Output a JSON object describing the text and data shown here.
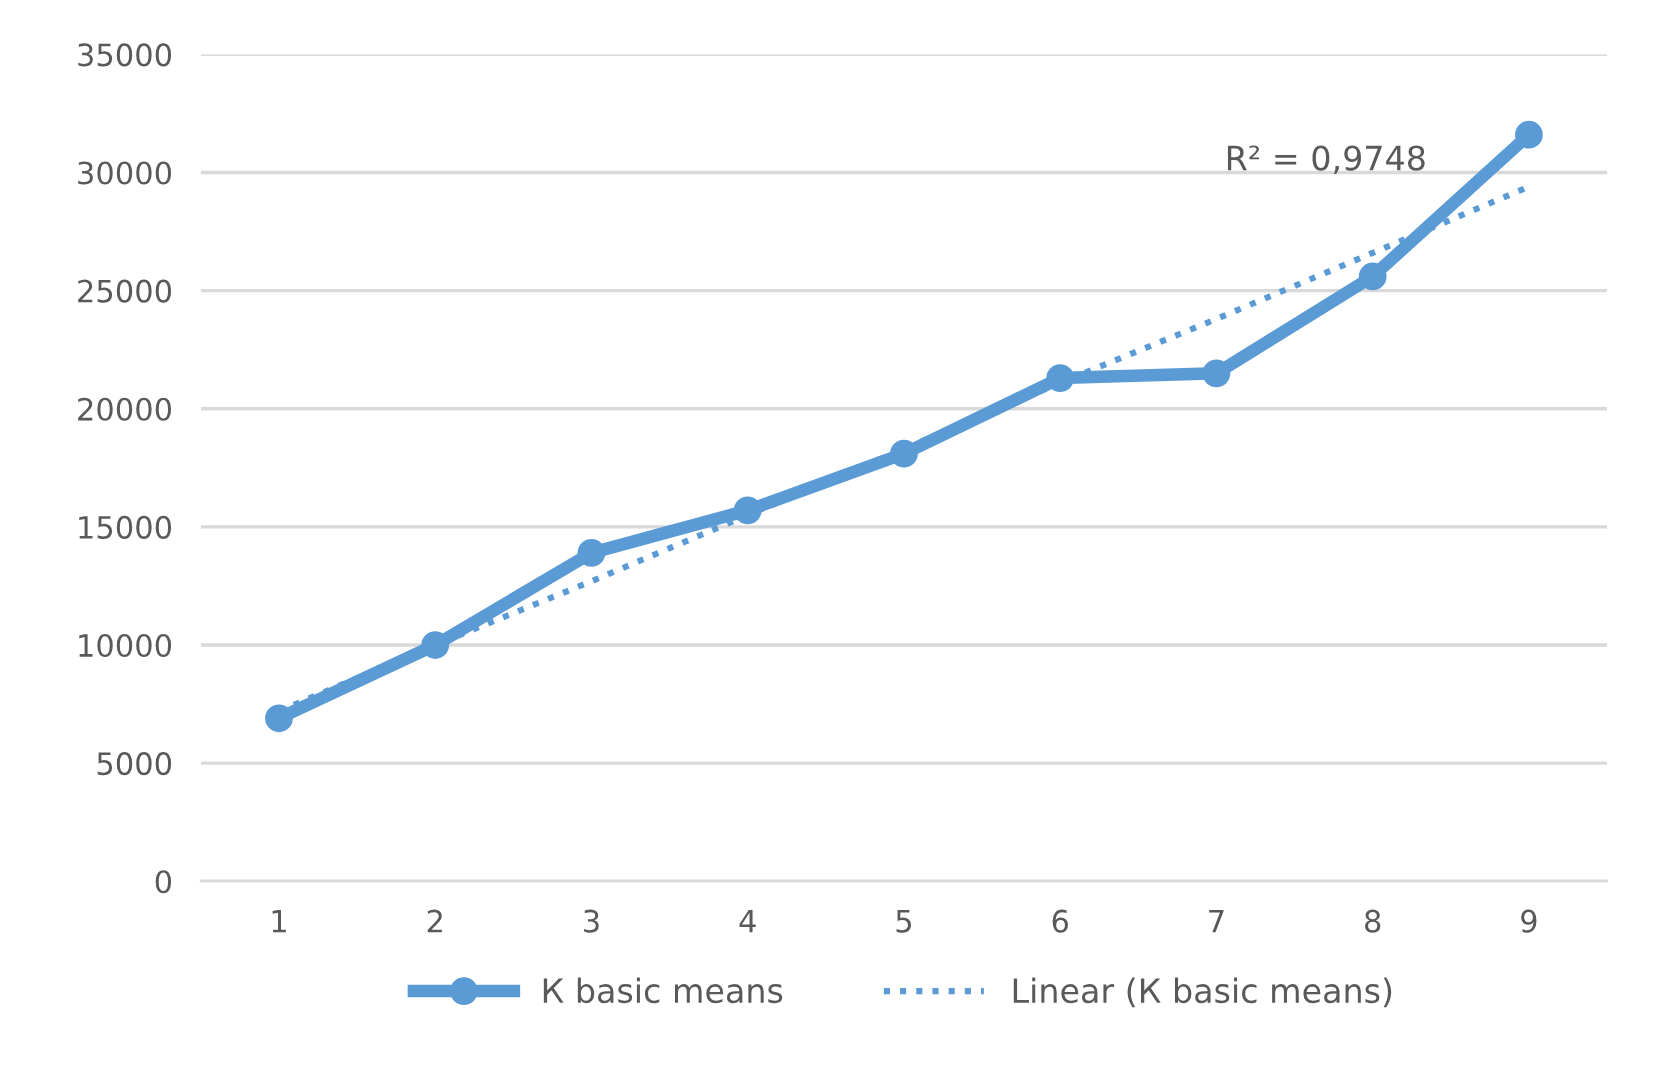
{
  "chart_data": {
    "type": "line",
    "categories": [
      "1",
      "2",
      "3",
      "4",
      "5",
      "6",
      "7",
      "8",
      "9"
    ],
    "series": [
      {
        "name": "К basic means",
        "color": "#5b9bd5",
        "values": [
          6900,
          10000,
          13900,
          15700,
          18100,
          21300,
          21500,
          25600,
          31600
        ],
        "marker": "circle",
        "line_style": "solid"
      },
      {
        "name": "Linear (К basic means)",
        "color": "#5b9bd5",
        "values": [
          7200,
          10000,
          12700,
          15500,
          18300,
          21100,
          23800,
          26600,
          29400
        ],
        "marker": "none",
        "line_style": "dotted"
      }
    ],
    "ylim": [
      0,
      35000
    ],
    "yticks": [
      0,
      5000,
      10000,
      15000,
      20000,
      25000,
      30000,
      35000
    ],
    "grid": "y",
    "legend": "bottom",
    "annotations": [
      "R² = 0,9748"
    ]
  }
}
